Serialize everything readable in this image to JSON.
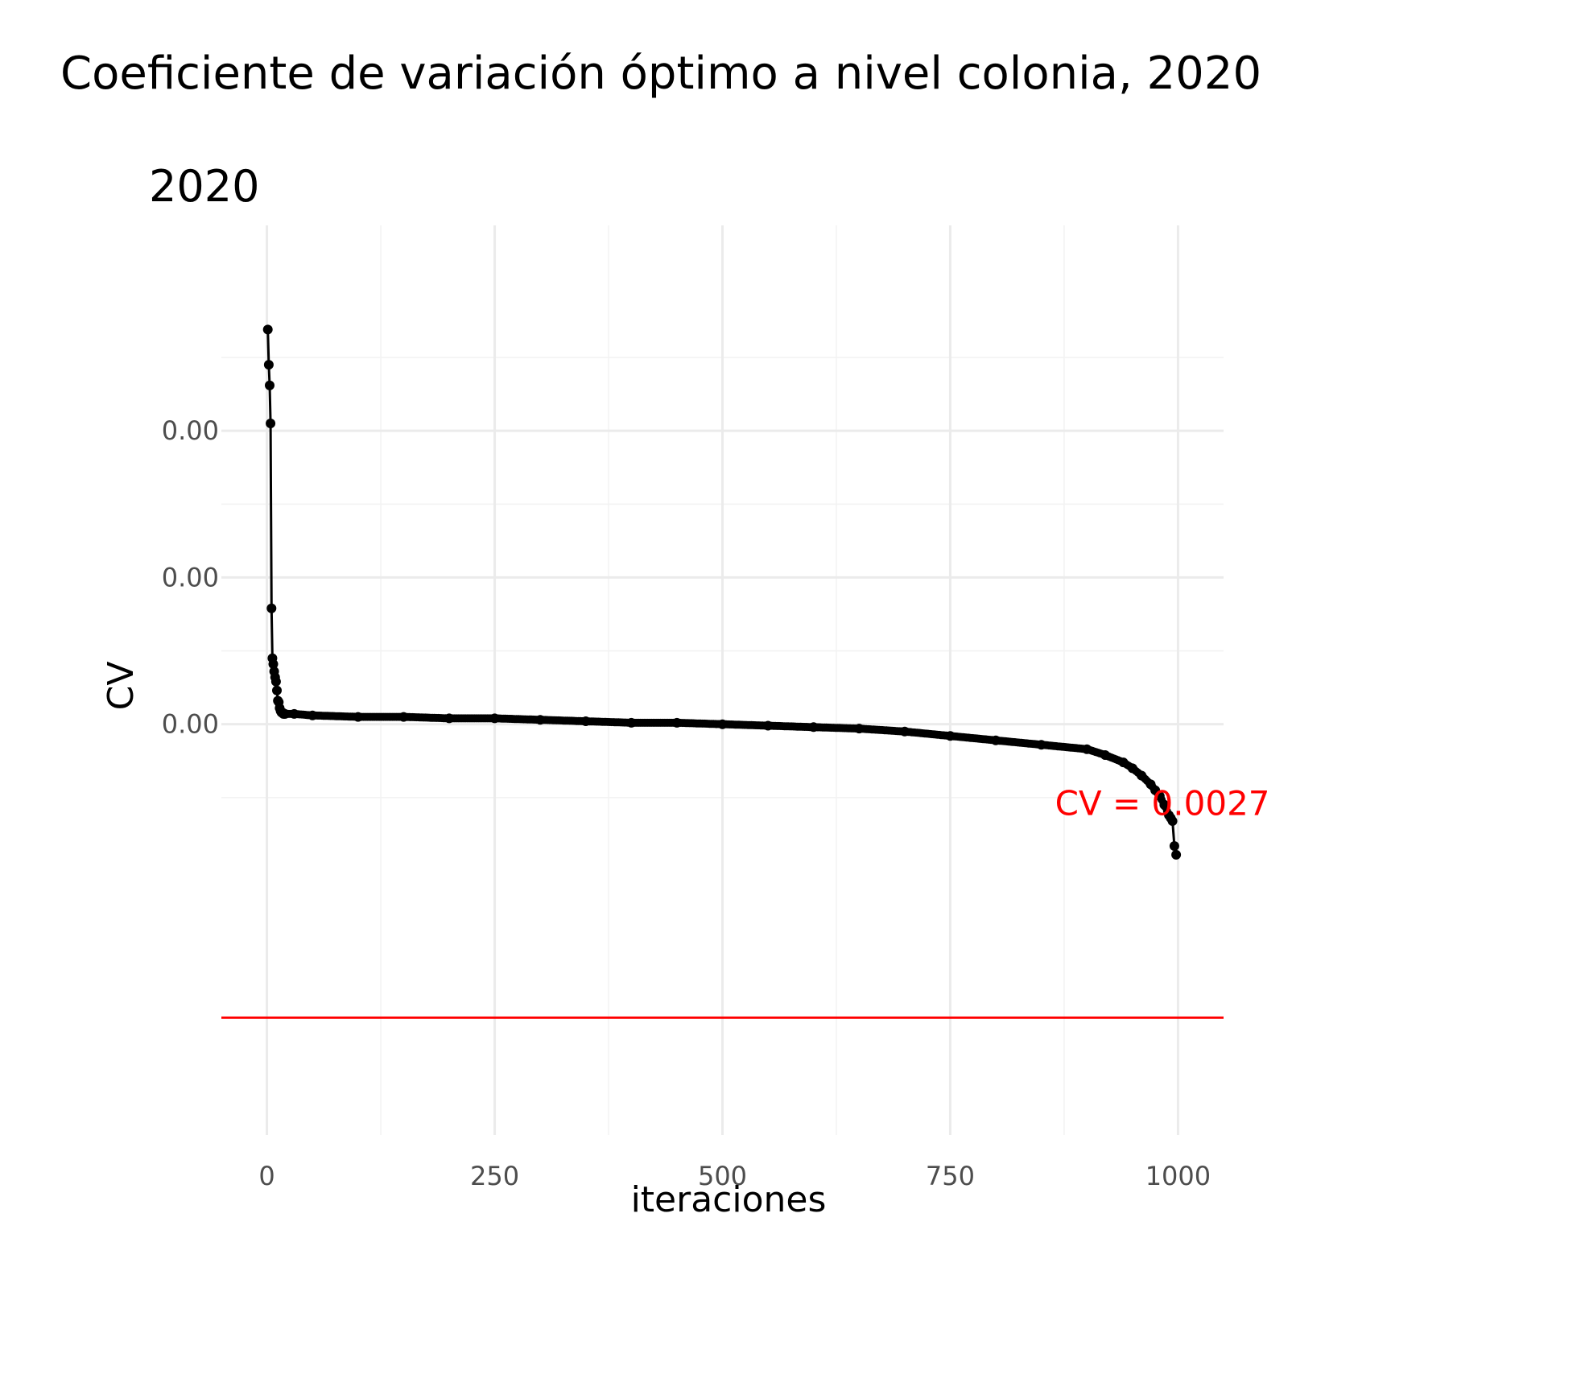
{
  "title": "Coeficiente de variación óptimo a nivel colonia, 2020",
  "subtitle": "2020",
  "chart_data": {
    "type": "line",
    "markers": true,
    "xlabel": "iteraciones",
    "ylabel": "CV",
    "xlim": [
      -50,
      1050
    ],
    "ylim": [
      0.00262,
      0.00324
    ],
    "x_ticks": [
      {
        "value": 0,
        "label": "0"
      },
      {
        "value": 250,
        "label": "250"
      },
      {
        "value": 500,
        "label": "500"
      },
      {
        "value": 750,
        "label": "750"
      },
      {
        "value": 1000,
        "label": "1000"
      }
    ],
    "y_ticks": [
      {
        "value": 0.0031,
        "label": "0.00"
      },
      {
        "value": 0.003,
        "label": "0.00"
      },
      {
        "value": 0.0029,
        "label": "0.00"
      }
    ],
    "grid": true,
    "line_color": "#000000",
    "series": [
      {
        "x": [
          1,
          2,
          3,
          4,
          5,
          6,
          7,
          8,
          9,
          10,
          11,
          12,
          13,
          14,
          15,
          16,
          17,
          18,
          19,
          20,
          30,
          50,
          100,
          150,
          200,
          250,
          300,
          350,
          400,
          450,
          500,
          550,
          600,
          650,
          700,
          750,
          800,
          850,
          900,
          920,
          940,
          950,
          960,
          970,
          975,
          980,
          985,
          990,
          992,
          994,
          996,
          998
        ],
        "y": [
          0.003169,
          0.003145,
          0.003131,
          0.003105,
          0.002979,
          0.002945,
          0.002941,
          0.002936,
          0.002932,
          0.002929,
          0.002923,
          0.002916,
          0.002915,
          0.002911,
          0.002909,
          0.002908,
          0.002908,
          0.002907,
          0.002907,
          0.002907,
          0.002907,
          0.002906,
          0.002905,
          0.002905,
          0.002904,
          0.002904,
          0.002903,
          0.002902,
          0.002901,
          0.002901,
          0.0029,
          0.002899,
          0.002898,
          0.002897,
          0.002895,
          0.002892,
          0.002889,
          0.002886,
          0.002883,
          0.002879,
          0.002874,
          0.00287,
          0.002865,
          0.002859,
          0.002855,
          0.002851,
          0.002845,
          0.002838,
          0.002836,
          0.002834,
          0.002817,
          0.002811
        ]
      }
    ],
    "reference_line": {
      "y": 0.0027,
      "color": "#ff0000"
    },
    "annotation": {
      "text": "CV = 0.0027",
      "x": 865,
      "y": 0.002838,
      "color": "#ff0000"
    }
  }
}
